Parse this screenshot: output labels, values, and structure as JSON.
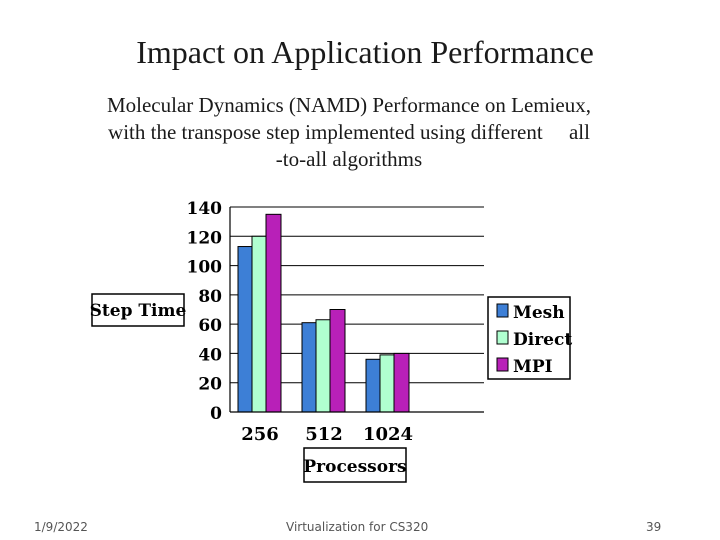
{
  "slide": {
    "title": "Impact on Application Performance",
    "subtitle_lines": [
      "Molecular Dynamics (NAMD) Performance on Lemieux,",
      "with the transpose step implemented using different     all",
      "-to-all algorithms"
    ],
    "footer": {
      "date": "1/9/2022",
      "center": "Virtualization for CS320",
      "page": "39"
    }
  },
  "chart_data": {
    "type": "bar",
    "title": "",
    "xlabel": "Processors",
    "ylabel": "Step Time",
    "categories": [
      "256",
      "512",
      "1024"
    ],
    "series": [
      {
        "name": "Mesh",
        "values": [
          113,
          61,
          36
        ],
        "color": "#3d7fd6"
      },
      {
        "name": "Direct",
        "values": [
          120,
          63,
          39
        ],
        "color": "#b0ffd0"
      },
      {
        "name": "MPI",
        "values": [
          135,
          70,
          40
        ],
        "color": "#b820b8"
      }
    ],
    "ylim": [
      0,
      140
    ],
    "yticks": [
      "0",
      "20",
      "40",
      "60",
      "80",
      "100",
      "120",
      "140"
    ],
    "grid": true,
    "legend": "right"
  }
}
